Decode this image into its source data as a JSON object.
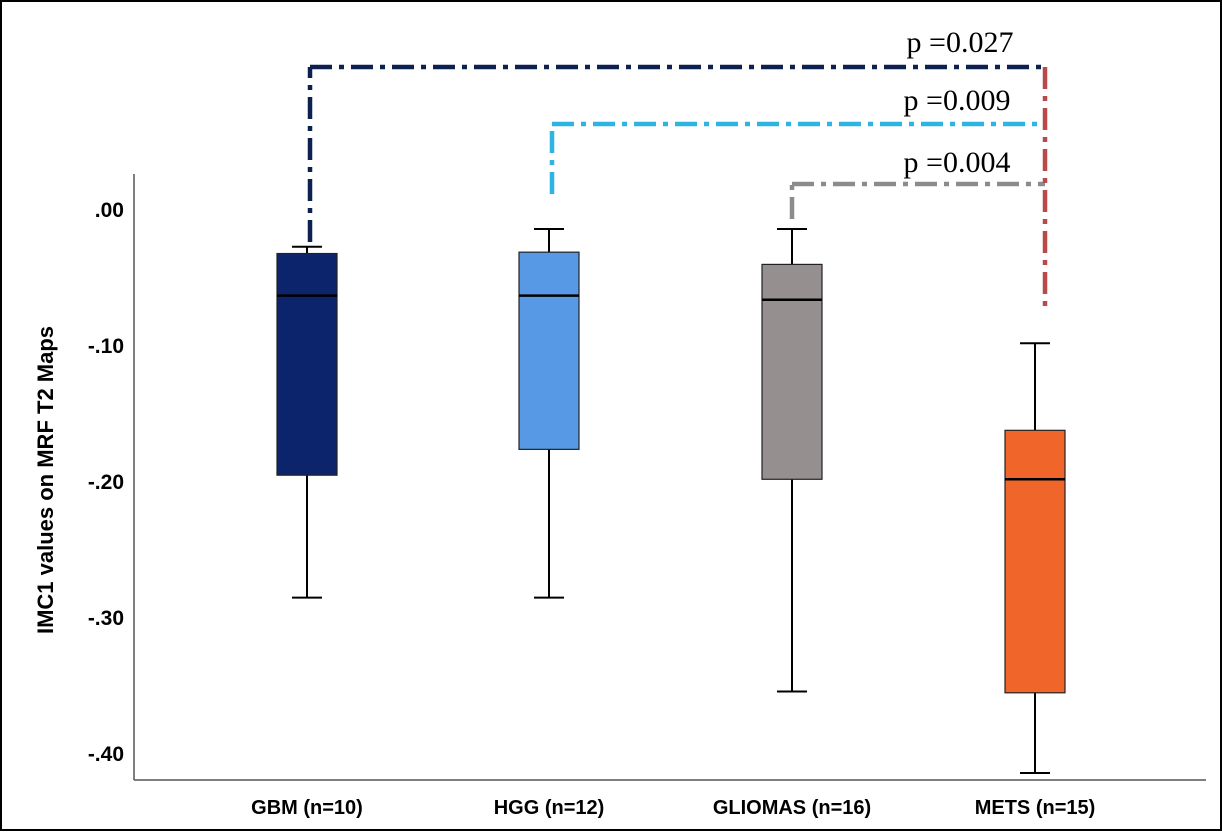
{
  "chart_data": {
    "type": "box",
    "ylabel": "IMC1 values on MRF T2 Maps",
    "xlabel": "",
    "ylim": [
      -0.41,
      0.02
    ],
    "yticks": [
      {
        "value": 0.0,
        "label": ".00"
      },
      {
        "value": -0.1,
        "label": "-.10"
      },
      {
        "value": -0.2,
        "label": "-.20"
      },
      {
        "value": -0.3,
        "label": "-.30"
      },
      {
        "value": -0.4,
        "label": "-.40"
      }
    ],
    "groups": [
      {
        "label": "GBM (n=10)",
        "color": "#0b246c",
        "min": -0.285,
        "q1": -0.195,
        "median": -0.063,
        "q3": -0.032,
        "max": -0.027
      },
      {
        "label": "HGG (n=12)",
        "color": "#5799e5",
        "min": -0.285,
        "q1": -0.176,
        "median": -0.063,
        "q3": -0.031,
        "max": -0.014
      },
      {
        "label": "GLIOMAS (n=16)",
        "color": "#968f8f",
        "min": -0.354,
        "q1": -0.198,
        "median": -0.066,
        "q3": -0.04,
        "max": -0.014
      },
      {
        "label": "METS (n=15)",
        "color": "#f0662a",
        "min": -0.414,
        "q1": -0.355,
        "median": -0.198,
        "q3": -0.162,
        "max": -0.098
      }
    ],
    "comparisons": [
      {
        "label": "p =0.027",
        "from": 0,
        "to": 3,
        "color": "#0d2150"
      },
      {
        "label": "p =0.009",
        "from": 1,
        "to": 3,
        "color": "#2eb4e2"
      },
      {
        "label": "p =0.004",
        "from": 2,
        "to": 3,
        "color": "#8c8c8c"
      }
    ],
    "comparison_target_color": "#b94a48"
  }
}
